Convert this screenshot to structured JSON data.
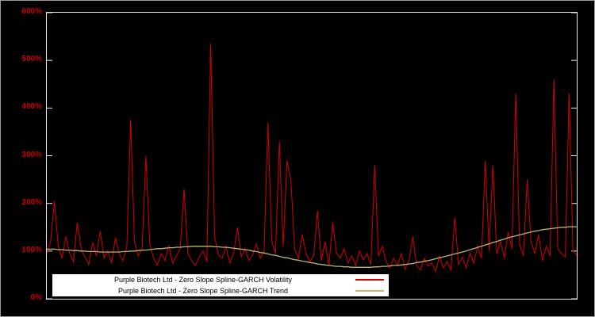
{
  "chart_data": {
    "type": "line",
    "title": "",
    "xlabel": "",
    "ylabel": "",
    "ylim": [
      0,
      600
    ],
    "yticks": [
      "0%",
      "100%",
      "200%",
      "300%",
      "400%",
      "500%",
      "600%"
    ],
    "grid": false,
    "background_color": "#000000",
    "axis_color": "#e6e6e6",
    "tick_label_color": "#cc0000",
    "legend_position": "bottom-inside",
    "series": [
      {
        "id": "volatility",
        "name": "Purple Biotech Ltd - Zero Slope Spline-GARCH Volatility",
        "color": "#d40000",
        "width": 1,
        "unit": "percent",
        "values": [
          95,
          120,
          205,
          110,
          85,
          130,
          95,
          78,
          160,
          105,
          88,
          72,
          118,
          90,
          142,
          85,
          100,
          75,
          128,
          95,
          80,
          110,
          375,
          120,
          90,
          105,
          300,
          115,
          85,
          70,
          95,
          80,
          112,
          75,
          90,
          105,
          230,
          95,
          80,
          70,
          88,
          100,
          78,
          535,
          130,
          92,
          85,
          110,
          75,
          95,
          150,
          88,
          105,
          80,
          92,
          115,
          85,
          100,
          370,
          120,
          95,
          330,
          110,
          290,
          250,
          105,
          85,
          135,
          95,
          78,
          90,
          185,
          80,
          120,
          70,
          160,
          95,
          85,
          105,
          75,
          90,
          70,
          100,
          82,
          95,
          72,
          280,
          90,
          110,
          78,
          65,
          85,
          70,
          95,
          62,
          80,
          130,
          70,
          60,
          85,
          68,
          75,
          58,
          90,
          65,
          78,
          60,
          170,
          72,
          88,
          65,
          95,
          75,
          110,
          85,
          290,
          100,
          280,
          95,
          120,
          85,
          140,
          105,
          430,
          115,
          90,
          250,
          120,
          95,
          135,
          80,
          110,
          90,
          460,
          105,
          95,
          88,
          430,
          100,
          92
        ]
      },
      {
        "id": "trend",
        "name": "Purple Biotech Ltd - Zero Slope Spline-GARCH Trend",
        "color": "#bdb76b",
        "width": 1.3,
        "unit": "percent",
        "values": [
          104,
          104,
          104,
          103,
          103,
          102,
          102,
          101,
          101,
          100,
          100,
          99,
          99,
          99,
          98,
          98,
          98,
          98,
          98,
          98,
          99,
          99,
          100,
          100,
          101,
          102,
          102,
          103,
          104,
          105,
          105,
          106,
          107,
          107,
          108,
          108,
          109,
          109,
          110,
          110,
          110,
          110,
          110,
          110,
          109,
          109,
          108,
          108,
          107,
          106,
          105,
          104,
          103,
          102,
          100,
          99,
          97,
          96,
          94,
          92,
          91,
          89,
          87,
          86,
          84,
          82,
          81,
          79,
          78,
          76,
          75,
          73,
          72,
          71,
          70,
          69,
          68,
          68,
          67,
          67,
          66,
          66,
          66,
          66,
          66,
          66,
          67,
          67,
          68,
          68,
          69,
          70,
          70,
          71,
          72,
          73,
          74,
          76,
          77,
          79,
          80,
          82,
          84,
          86,
          88,
          90,
          92,
          94,
          96,
          98,
          100,
          103,
          105,
          108,
          110,
          113,
          115,
          118,
          120,
          123,
          125,
          128,
          130,
          132,
          134,
          136,
          138,
          140,
          142,
          143,
          145,
          146,
          147,
          148,
          149,
          150,
          150,
          151,
          151,
          151
        ]
      }
    ]
  },
  "legend": {
    "items": [
      {
        "label": "Purple Biotech Ltd - Zero Slope Spline-GARCH Volatility",
        "color": "#d40000"
      },
      {
        "label": "Purple Biotech Ltd - Zero Slope Spline-GARCH Trend",
        "color": "#bdb76b"
      }
    ]
  }
}
